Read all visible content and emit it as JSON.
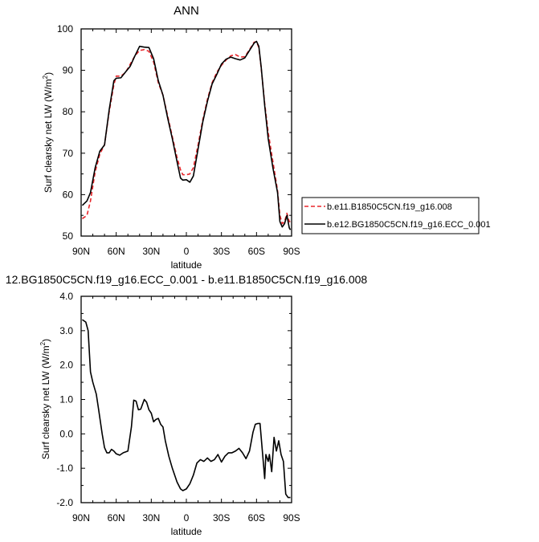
{
  "chart_data": [
    {
      "type": "line",
      "title": "ANN",
      "xlabel": "latitude",
      "ylabel": "Surf clearsky net LW (W/m²)",
      "ylabel_base": "Surf clearsky net LW (W/m",
      "ylabel_sup": "2",
      "ylabel_close": ")",
      "xlim": [
        90,
        -90
      ],
      "ylim": [
        50,
        100
      ],
      "x_ticks": [
        90,
        60,
        30,
        0,
        -30,
        -60,
        -90
      ],
      "x_tick_labels": [
        "90N",
        "60N",
        "30N",
        "0",
        "30S",
        "60S",
        "90S"
      ],
      "y_ticks": [
        50,
        60,
        70,
        80,
        90,
        100
      ],
      "y_tick_labels": [
        "50",
        "60",
        "70",
        "80",
        "90",
        "100"
      ],
      "legend_position": "right",
      "series": [
        {
          "name": "b.e11.B1850C5CN.f19_g16.008",
          "color": "#e8262b",
          "dash": true,
          "points": [
            [
              89,
              54.2
            ],
            [
              85,
              55.0
            ],
            [
              82,
              58.5
            ],
            [
              78,
              65.5
            ],
            [
              74,
              69.8
            ],
            [
              70,
              72.0
            ],
            [
              66,
              80.0
            ],
            [
              62,
              86.5
            ],
            [
              60,
              88.6
            ],
            [
              56,
              88.6
            ],
            [
              52,
              89.5
            ],
            [
              48,
              91.5
            ],
            [
              44,
              93.5
            ],
            [
              40,
              94.8
            ],
            [
              36,
              95.0
            ],
            [
              32,
              94.6
            ],
            [
              28,
              92.0
            ],
            [
              24,
              87.0
            ],
            [
              20,
              84.0
            ],
            [
              16,
              79.0
            ],
            [
              12,
              74.0
            ],
            [
              8,
              69.0
            ],
            [
              5,
              66.0
            ],
            [
              3,
              64.8
            ],
            [
              0,
              64.8
            ],
            [
              -3,
              65.0
            ],
            [
              -6,
              66.5
            ],
            [
              -10,
              72.0
            ],
            [
              -14,
              78.0
            ],
            [
              -18,
              83.0
            ],
            [
              -22,
              87.0
            ],
            [
              -26,
              89.5
            ],
            [
              -30,
              91.2
            ],
            [
              -34,
              92.5
            ],
            [
              -38,
              93.5
            ],
            [
              -42,
              93.8
            ],
            [
              -46,
              93.2
            ],
            [
              -50,
              93.3
            ],
            [
              -54,
              95.0
            ],
            [
              -58,
              96.8
            ],
            [
              -60,
              96.9
            ],
            [
              -62,
              95.5
            ],
            [
              -64,
              90.5
            ],
            [
              -67,
              82.0
            ],
            [
              -70,
              75.0
            ],
            [
              -74,
              68.0
            ],
            [
              -78,
              61.0
            ],
            [
              -80,
              55.0
            ],
            [
              -82,
              53.0
            ],
            [
              -84,
              53.5
            ],
            [
              -86,
              55.5
            ],
            [
              -88,
              53.5
            ],
            [
              -89,
              53.5
            ]
          ]
        },
        {
          "name": "b.e12.BG1850C5CN.f19_g16.ECC_0.001",
          "color": "#000000",
          "dash": false,
          "points": [
            [
              89,
              57.4
            ],
            [
              85,
              58.5
            ],
            [
              82,
              60.5
            ],
            [
              78,
              66.5
            ],
            [
              74,
              70.5
            ],
            [
              70,
              72.0
            ],
            [
              66,
              80.5
            ],
            [
              62,
              87.5
            ],
            [
              60,
              88.1
            ],
            [
              56,
              88.2
            ],
            [
              52,
              89.6
            ],
            [
              48,
              91.0
            ],
            [
              44,
              93.5
            ],
            [
              40,
              95.8
            ],
            [
              36,
              95.6
            ],
            [
              32,
              95.5
            ],
            [
              28,
              92.8
            ],
            [
              24,
              87.5
            ],
            [
              20,
              84.0
            ],
            [
              16,
              78.5
            ],
            [
              12,
              73.5
            ],
            [
              8,
              68.0
            ],
            [
              5,
              64.0
            ],
            [
              3,
              63.5
            ],
            [
              0,
              63.6
            ],
            [
              -3,
              63.0
            ],
            [
              -6,
              64.5
            ],
            [
              -10,
              71.0
            ],
            [
              -14,
              77.5
            ],
            [
              -18,
              82.5
            ],
            [
              -22,
              86.7
            ],
            [
              -26,
              89.0
            ],
            [
              -30,
              91.5
            ],
            [
              -34,
              92.7
            ],
            [
              -38,
              93.2
            ],
            [
              -42,
              92.8
            ],
            [
              -46,
              92.5
            ],
            [
              -50,
              93.0
            ],
            [
              -54,
              94.8
            ],
            [
              -58,
              96.6
            ],
            [
              -60,
              97.0
            ],
            [
              -62,
              95.8
            ],
            [
              -64,
              90.8
            ],
            [
              -67,
              81.5
            ],
            [
              -70,
              73.5
            ],
            [
              -74,
              66.5
            ],
            [
              -78,
              60.5
            ],
            [
              -80,
              53.5
            ],
            [
              -82,
              52.2
            ],
            [
              -84,
              53.0
            ],
            [
              -86,
              55.0
            ],
            [
              -88,
              52.0
            ],
            [
              -89,
              51.5
            ]
          ]
        }
      ]
    },
    {
      "type": "line",
      "title": "12.BG1850C5CN.f19_g16.ECC_0.001 - b.e11.B1850C5CN.f19_g16.008",
      "xlabel": "latitude",
      "ylabel": "Surf clearsky net LW (W/m²)",
      "ylabel_base": "Surf clearsky net LW (W/m",
      "ylabel_sup": "2",
      "ylabel_close": ")",
      "xlim": [
        90,
        -90
      ],
      "ylim": [
        -2.0,
        4.0
      ],
      "x_ticks": [
        90,
        60,
        30,
        0,
        -30,
        -60,
        -90
      ],
      "x_tick_labels": [
        "90N",
        "60N",
        "30N",
        "0",
        "30S",
        "60S",
        "90S"
      ],
      "y_ticks": [
        -2,
        -1,
        0,
        1,
        2,
        3,
        4
      ],
      "y_tick_labels": [
        "-2.0",
        "-1.0",
        "0.0",
        "1.0",
        "2.0",
        "3.0",
        "4.0"
      ],
      "series": [
        {
          "color": "#000000",
          "dash": false,
          "points": [
            [
              89,
              3.32
            ],
            [
              86,
              3.25
            ],
            [
              84,
              3.0
            ],
            [
              82,
              1.8
            ],
            [
              80,
              1.5
            ],
            [
              77,
              1.15
            ],
            [
              75,
              0.7
            ],
            [
              72,
              0.0
            ],
            [
              70,
              -0.4
            ],
            [
              68,
              -0.55
            ],
            [
              66,
              -0.55
            ],
            [
              64,
              -0.45
            ],
            [
              62,
              -0.5
            ],
            [
              60,
              -0.58
            ],
            [
              57,
              -0.62
            ],
            [
              54,
              -0.55
            ],
            [
              50,
              -0.5
            ],
            [
              47,
              0.2
            ],
            [
              45,
              0.98
            ],
            [
              43,
              0.95
            ],
            [
              41,
              0.7
            ],
            [
              39,
              0.72
            ],
            [
              36,
              1.0
            ],
            [
              34,
              0.92
            ],
            [
              32,
              0.7
            ],
            [
              30,
              0.6
            ],
            [
              28,
              0.35
            ],
            [
              26,
              0.42
            ],
            [
              24,
              0.45
            ],
            [
              22,
              0.28
            ],
            [
              20,
              0.2
            ],
            [
              18,
              -0.2
            ],
            [
              15,
              -0.65
            ],
            [
              12,
              -1.0
            ],
            [
              8,
              -1.4
            ],
            [
              5,
              -1.6
            ],
            [
              3,
              -1.65
            ],
            [
              0,
              -1.6
            ],
            [
              -3,
              -1.45
            ],
            [
              -6,
              -1.2
            ],
            [
              -9,
              -0.85
            ],
            [
              -12,
              -0.75
            ],
            [
              -15,
              -0.8
            ],
            [
              -18,
              -0.7
            ],
            [
              -21,
              -0.8
            ],
            [
              -24,
              -0.75
            ],
            [
              -27,
              -0.6
            ],
            [
              -30,
              -0.82
            ],
            [
              -33,
              -0.65
            ],
            [
              -36,
              -0.55
            ],
            [
              -39,
              -0.55
            ],
            [
              -42,
              -0.5
            ],
            [
              -45,
              -0.42
            ],
            [
              -48,
              -0.55
            ],
            [
              -51,
              -0.72
            ],
            [
              -54,
              -0.5
            ],
            [
              -57,
              0.05
            ],
            [
              -59,
              0.28
            ],
            [
              -61,
              0.3
            ],
            [
              -63,
              0.3
            ],
            [
              -65,
              -0.5
            ],
            [
              -67,
              -1.3
            ],
            [
              -68,
              -0.6
            ],
            [
              -70,
              -0.8
            ],
            [
              -71,
              -0.6
            ],
            [
              -73,
              -1.1
            ],
            [
              -75,
              -0.1
            ],
            [
              -77,
              -0.5
            ],
            [
              -79,
              -0.2
            ],
            [
              -81,
              -0.6
            ],
            [
              -83,
              -0.8
            ],
            [
              -85,
              -1.75
            ],
            [
              -87,
              -1.85
            ],
            [
              -89,
              -1.85
            ]
          ]
        }
      ]
    }
  ]
}
